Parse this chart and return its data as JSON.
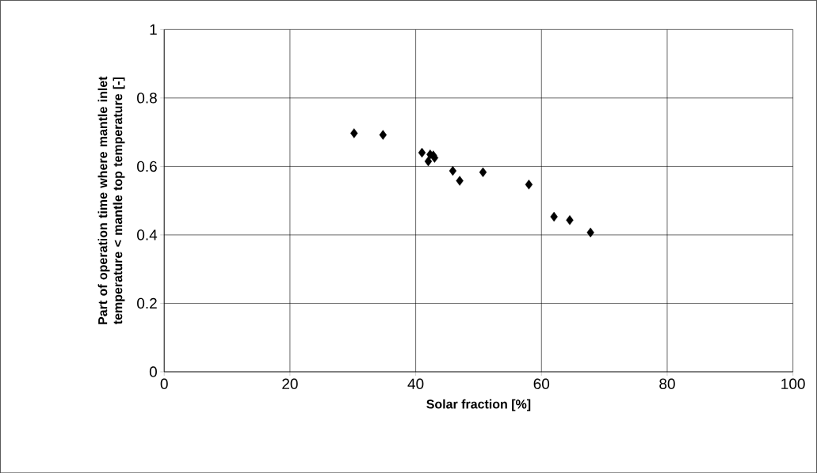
{
  "chart_data": {
    "type": "scatter",
    "xlabel": "Solar fraction [%]",
    "ylabel": "Part of operation time where mantle inlet temperature < mantle top temperature [-]",
    "x": [
      30.2,
      34.8,
      41.0,
      42.0,
      42.3,
      42.8,
      43.0,
      45.9,
      47.0,
      50.7,
      58.0,
      62.0,
      64.5,
      67.8
    ],
    "values": [
      0.697,
      0.692,
      0.64,
      0.615,
      0.635,
      0.632,
      0.625,
      0.587,
      0.558,
      0.583,
      0.547,
      0.453,
      0.443,
      0.407
    ],
    "color": "#000000",
    "marker": "diamond",
    "xlim": [
      0,
      100
    ],
    "xticks": [
      0,
      20,
      40,
      60,
      80,
      100
    ],
    "ylim": [
      0,
      1
    ],
    "yticks": [
      0,
      0.2,
      0.4,
      0.6,
      0.8,
      1
    ],
    "grid": true
  }
}
